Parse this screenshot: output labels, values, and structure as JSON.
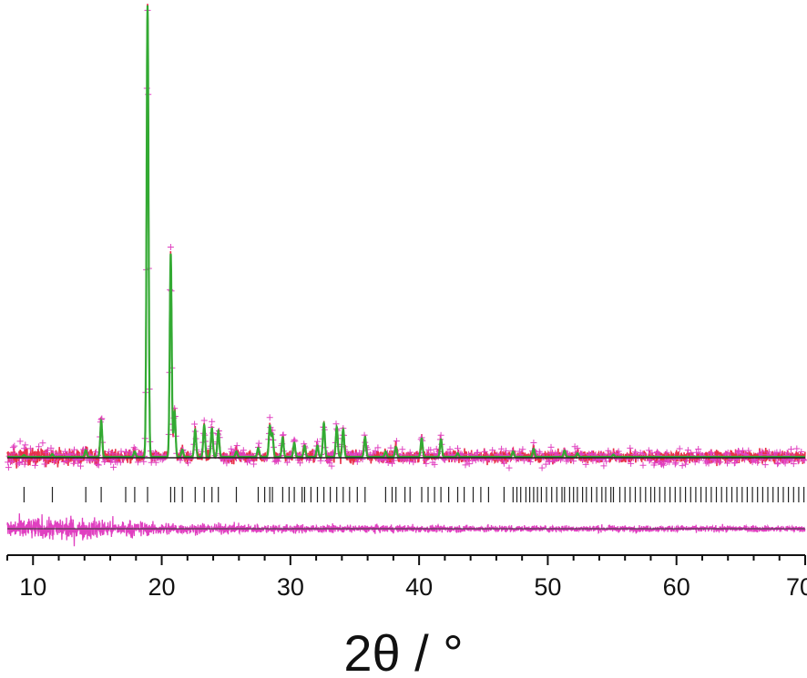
{
  "chart_data": {
    "type": "line",
    "title": "",
    "xlabel": "2θ / °",
    "ylabel": "",
    "xlim": [
      8,
      70
    ],
    "ylim": [
      -0.34,
      1.0
    ],
    "grid": false,
    "legend": "none",
    "x_ticks": [
      "10",
      "20",
      "30",
      "40",
      "50",
      "60",
      "70"
    ],
    "x_tick_values": [
      10,
      20,
      30,
      40,
      50,
      60,
      70
    ],
    "colors": {
      "observed": "#e8304a",
      "calculated": "#33aa33",
      "background": "#222222",
      "difference": "#e040c0",
      "reflections": "#222222",
      "axis": "#111111"
    },
    "series": [
      {
        "role": "calculated_peaks",
        "x": [
          9.3,
          11.5,
          14.1,
          15.3,
          17.9,
          18.9,
          20.7,
          21.0,
          21.6,
          22.6,
          23.3,
          23.9,
          24.4,
          25.8,
          27.5,
          28.4,
          28.6,
          29.4,
          30.3,
          31.1,
          32.1,
          32.6,
          33.6,
          34.1,
          35.8,
          37.4,
          38.2,
          40.2,
          41.7,
          43.0,
          47.3,
          48.9,
          51.3,
          52.3,
          55.1
        ],
        "y": [
          0.004,
          0.006,
          0.015,
          0.08,
          0.012,
          1.0,
          0.45,
          0.1,
          0.016,
          0.06,
          0.07,
          0.063,
          0.058,
          0.012,
          0.02,
          0.068,
          0.05,
          0.043,
          0.031,
          0.025,
          0.025,
          0.075,
          0.066,
          0.061,
          0.044,
          0.012,
          0.022,
          0.041,
          0.039,
          0.008,
          0.012,
          0.018,
          0.014,
          0.008,
          0.005
        ]
      },
      {
        "role": "difference_profile",
        "x": [
          8,
          10,
          12,
          14,
          16,
          18,
          20,
          22,
          26,
          30,
          35,
          40,
          50,
          60,
          70
        ],
        "noise_amplitude": [
          0.018,
          0.02,
          0.022,
          0.02,
          0.017,
          0.014,
          0.012,
          0.01,
          0.009,
          0.008,
          0.007,
          0.007,
          0.006,
          0.006,
          0.006
        ]
      }
    ],
    "reflection_positions": [
      9.3,
      11.5,
      14.1,
      15.3,
      17.2,
      17.9,
      18.9,
      20.7,
      21.0,
      21.6,
      22.6,
      23.3,
      23.9,
      24.4,
      25.8,
      27.5,
      28.0,
      28.4,
      28.6,
      29.4,
      29.9,
      30.3,
      30.9,
      31.1,
      31.6,
      32.1,
      32.6,
      33.1,
      33.6,
      34.1,
      34.6,
      35.2,
      35.8,
      37.4,
      37.9,
      38.2,
      38.9,
      39.3,
      40.2,
      40.7,
      41.2,
      41.7,
      42.3,
      43.0,
      43.5,
      44.2,
      44.8,
      45.4,
      46.6,
      47.3,
      47.6,
      47.9,
      48.3,
      48.6,
      48.9,
      49.2,
      49.5,
      49.9,
      50.3,
      50.7,
      51.1,
      51.3,
      51.7,
      52.0,
      52.3,
      52.7,
      53.0,
      53.4,
      53.8,
      54.2,
      54.5,
      54.9,
      55.1,
      55.6,
      56.0,
      56.4,
      56.8,
      57.2,
      57.6,
      58.0,
      58.3,
      58.7,
      59.1,
      59.5,
      59.9,
      60.3,
      60.7,
      61.1,
      61.5,
      61.9,
      62.3,
      62.7,
      63.1,
      63.5,
      63.9,
      64.3,
      64.7,
      65.1,
      65.5,
      65.9,
      66.3,
      66.7,
      67.1,
      67.5,
      67.9,
      68.3,
      68.7,
      69.1,
      69.5,
      69.9
    ]
  }
}
